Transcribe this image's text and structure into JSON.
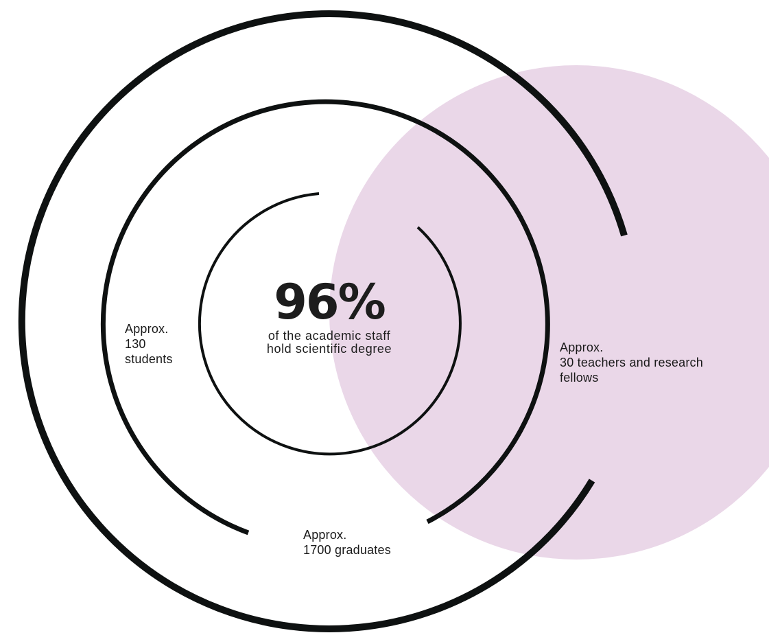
{
  "colors": {
    "ring": "#0e1111",
    "bubble": "#ead7e8",
    "text": "#1a1a1a"
  },
  "center": {
    "percent": "96%",
    "caption_line1": "of the academic staff",
    "caption_line2": "hold scientific degree"
  },
  "students": {
    "line1": "Approx.",
    "line2": "130",
    "line3": "students"
  },
  "graduates": {
    "line1": "Approx.",
    "line2": "1700 graduates"
  },
  "teachers": {
    "line1": "Approx.",
    "line2": "30 teachers and research",
    "line3": "fellows"
  }
}
